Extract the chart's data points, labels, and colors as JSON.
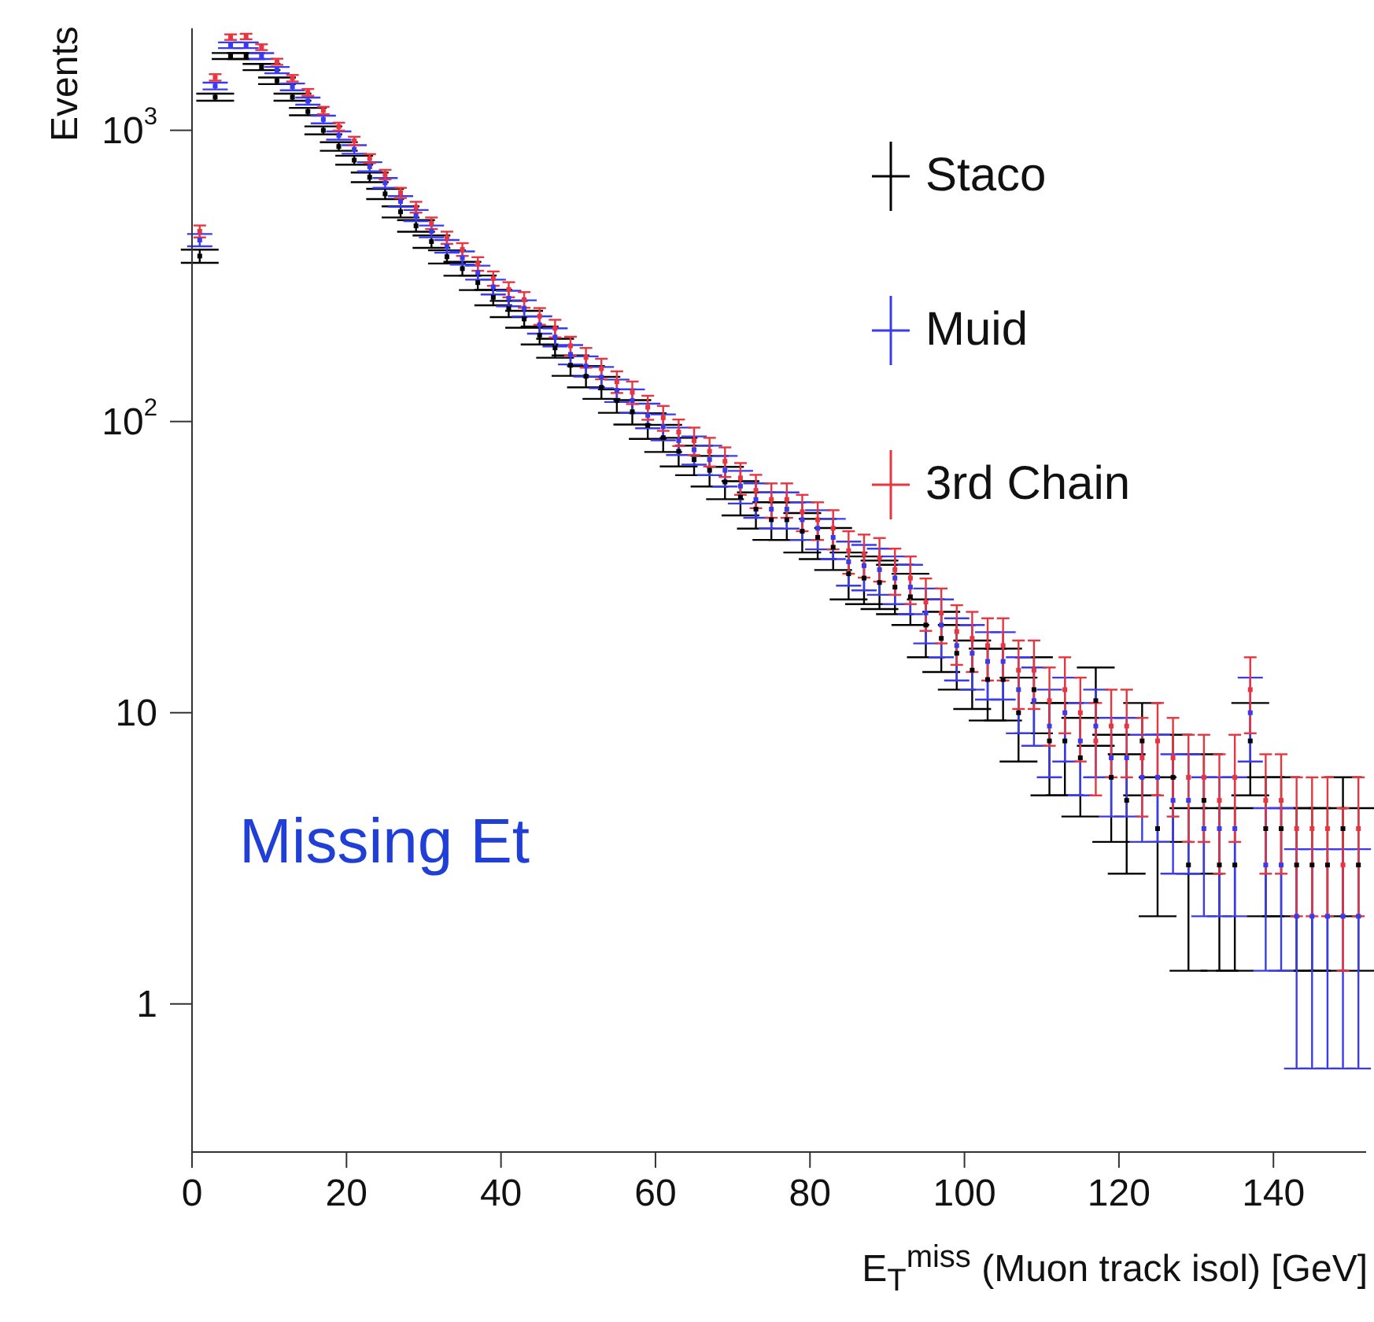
{
  "chart_data": {
    "type": "scatter",
    "xlabel": "E$_{T}$$^{miss}$ (Muon track isol) [GeV]",
    "ylabel": "Events",
    "annotations": [
      "Missing Et"
    ],
    "x": [
      1,
      3,
      5,
      7,
      9,
      11,
      13,
      15,
      17,
      19,
      21,
      23,
      25,
      27,
      29,
      31,
      33,
      35,
      37,
      39,
      41,
      43,
      45,
      47,
      49,
      51,
      53,
      55,
      57,
      59,
      61,
      63,
      65,
      67,
      69,
      71,
      73,
      75,
      77,
      79,
      81,
      83,
      85,
      87,
      89,
      91,
      93,
      95,
      97,
      99,
      101,
      103,
      105,
      107,
      109,
      111,
      113,
      115,
      117,
      119,
      121,
      123,
      125,
      127,
      129,
      131,
      133,
      135,
      137,
      139,
      141,
      143,
      145,
      147,
      149,
      151
    ],
    "xlim": [
      0,
      152
    ],
    "xticks": [
      0,
      20,
      40,
      60,
      80,
      100,
      120,
      140
    ],
    "ylim": [
      0.31,
      2240
    ],
    "yticks": [
      1,
      10,
      {
        "value": 100,
        "label": "10$^{2}$"
      },
      {
        "value": 1000,
        "label": "10$^{3}$"
      }
    ],
    "log": true,
    "legend": "top right",
    "marker": "square",
    "series": [
      {
        "name": "Staco",
        "color": "#000000",
        "values": [
          370,
          1300,
          1800,
          1800,
          1650,
          1480,
          1300,
          1160,
          1000,
          880,
          790,
          690,
          605,
          525,
          470,
          415,
          368,
          335,
          300,
          267,
          244,
          225,
          198,
          179,
          156,
          143,
          131,
          118,
          108,
          97,
          88,
          79,
          74,
          68,
          62,
          55,
          50,
          46,
          46,
          42,
          40,
          37,
          30,
          29,
          28,
          27,
          25,
          20,
          18,
          16,
          14,
          13,
          13,
          10,
          12,
          8,
          8,
          7,
          11,
          6,
          5,
          8,
          4,
          6,
          3,
          5,
          3,
          3,
          8,
          4,
          4,
          3,
          3,
          3,
          4,
          3
        ],
        "errors": [
          19.2,
          36,
          42.4,
          42.4,
          40.6,
          38.5,
          36,
          34,
          31.6,
          29.7,
          28.1,
          26.3,
          24.6,
          22.9,
          21.7,
          20.4,
          19.2,
          18.3,
          17.3,
          16.3,
          15.6,
          15,
          14.1,
          13.4,
          12.5,
          12,
          11.4,
          10.9,
          10.4,
          9.8,
          9.4,
          8.9,
          8.6,
          8.2,
          7.9,
          7.4,
          7.1,
          6.8,
          6.8,
          6.5,
          6.3,
          6.1,
          5.5,
          5.4,
          5.3,
          5.2,
          5,
          4.5,
          4.2,
          4,
          3.7,
          3.6,
          3.6,
          3.2,
          3.5,
          2.8,
          2.8,
          2.6,
          3.3,
          2.4,
          2.2,
          2.8,
          2,
          2.4,
          1.7,
          2.2,
          1.7,
          1.7,
          2.8,
          2,
          2,
          1.7,
          1.7,
          1.7,
          2,
          1.7
        ]
      },
      {
        "name": "Muid",
        "color": "#3a3af0",
        "values": [
          420,
          1420,
          1960,
          1960,
          1800,
          1610,
          1410,
          1260,
          1090,
          960,
          860,
          750,
          660,
          570,
          510,
          450,
          400,
          365,
          325,
          290,
          265,
          245,
          215,
          195,
          170,
          155,
          142,
          128,
          118,
          105,
          96,
          86,
          80,
          74,
          68,
          60,
          54,
          50,
          50,
          46,
          43,
          40,
          33,
          32,
          31,
          29,
          27,
          22,
          20,
          17,
          16,
          15,
          15,
          12,
          11,
          9,
          10,
          8,
          9,
          7,
          7,
          6,
          6,
          5,
          5,
          4,
          4,
          4,
          10,
          3,
          3,
          2,
          2,
          2,
          2,
          2
        ],
        "errors": [
          20.5,
          38,
          44,
          44,
          42,
          40,
          37.5,
          35.5,
          33,
          31,
          29,
          27,
          25.7,
          24,
          22.6,
          21,
          20,
          19,
          18,
          17,
          16.3,
          15.7,
          14.7,
          14,
          13,
          12.4,
          11.9,
          11.3,
          10.9,
          10.2,
          9.8,
          9.3,
          8.9,
          8.6,
          8.2,
          7.7,
          7.3,
          7.1,
          7.1,
          6.8,
          6.6,
          6.3,
          5.7,
          5.7,
          5.6,
          5.4,
          5.2,
          4.7,
          4.5,
          4.1,
          4,
          3.9,
          3.9,
          3.5,
          3.3,
          3,
          3.2,
          2.8,
          3,
          2.6,
          2.6,
          2.4,
          2.4,
          2.2,
          2.2,
          2,
          2,
          2,
          3.2,
          1.7,
          1.7,
          1.4,
          1.4,
          1.4,
          1.4,
          1.4
        ]
      },
      {
        "name": "3rd Chain",
        "color": "#e8353f",
        "values": [
          450,
          1520,
          2090,
          2100,
          1930,
          1720,
          1510,
          1350,
          1170,
          1030,
          920,
          800,
          705,
          610,
          545,
          480,
          428,
          390,
          348,
          310,
          284,
          262,
          230,
          209,
          182,
          166,
          152,
          137,
          126,
          112,
          103,
          92,
          86,
          79,
          73,
          64,
          58,
          54,
          54,
          49,
          46,
          43,
          36,
          35,
          34,
          31,
          29,
          24,
          22,
          19,
          18,
          17,
          17,
          14,
          14,
          11,
          12,
          10,
          8,
          9,
          9,
          7,
          8,
          7,
          6,
          6,
          5,
          6,
          12,
          5,
          5,
          4,
          4,
          4,
          3,
          4
        ],
        "errors": [
          21.2,
          39,
          45.7,
          45.8,
          43.9,
          41.5,
          38.9,
          36.7,
          34.2,
          32.1,
          30.3,
          28.3,
          26.6,
          24.7,
          23.3,
          21.9,
          20.7,
          19.7,
          18.7,
          17.6,
          16.9,
          16.2,
          15.2,
          14.5,
          13.5,
          12.9,
          12.3,
          11.7,
          11.2,
          10.6,
          10.1,
          9.6,
          9.3,
          8.9,
          8.5,
          8,
          7.6,
          7.3,
          7.3,
          7,
          6.8,
          6.6,
          6,
          5.9,
          5.8,
          5.6,
          5.4,
          4.9,
          4.7,
          4.4,
          4.2,
          4.1,
          4.1,
          3.7,
          3.7,
          3.3,
          3.5,
          3.2,
          2.8,
          3,
          3,
          2.6,
          2.8,
          2.6,
          2.4,
          2.4,
          2.2,
          2.4,
          3.5,
          2.2,
          2.2,
          2,
          2,
          2,
          1.7,
          2
        ]
      }
    ]
  }
}
